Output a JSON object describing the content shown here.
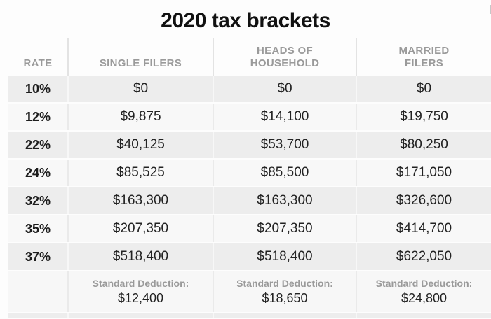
{
  "title": "2020 tax brackets",
  "colors": {
    "row_dark": "#ededed",
    "row_light": "#f8f8f8",
    "header_text": "#9a9a9a",
    "value_text": "#222222",
    "title_text": "#111111",
    "background": "#fdfdfd"
  },
  "table": {
    "header": {
      "rate": "RATE",
      "single": "SINGLE FILERS",
      "heads": "HEADS OF HOUSEHOLD",
      "married": "MARRIED FILERS"
    },
    "rows": [
      {
        "rate": "10%",
        "single": "$0",
        "heads": "$0",
        "married": "$0"
      },
      {
        "rate": "12%",
        "single": "$9,875",
        "heads": "$14,100",
        "married": "$19,750"
      },
      {
        "rate": "22%",
        "single": "$40,125",
        "heads": "$53,700",
        "married": "$80,250"
      },
      {
        "rate": "24%",
        "single": "$85,525",
        "heads": "$85,500",
        "married": "$171,050"
      },
      {
        "rate": "32%",
        "single": "$163,300",
        "heads": "$163,300",
        "married": "$326,600"
      },
      {
        "rate": "35%",
        "single": "$207,350",
        "heads": "$207,350",
        "married": "$414,700"
      },
      {
        "rate": "37%",
        "single": "$518,400",
        "heads": "$518,400",
        "married": "$622,050"
      }
    ],
    "standard_deduction": {
      "label": "Standard Deduction:",
      "single": "$12,400",
      "heads": "$18,650",
      "married": "$24,800"
    }
  },
  "chart_data": {
    "type": "table",
    "title": "2020 tax brackets",
    "columns": [
      "RATE",
      "SINGLE FILERS",
      "HEADS OF HOUSEHOLD",
      "MARRIED FILERS"
    ],
    "rows": [
      [
        "10%",
        "$0",
        "$0",
        "$0"
      ],
      [
        "12%",
        "$9,875",
        "$14,100",
        "$19,750"
      ],
      [
        "22%",
        "$40,125",
        "$53,700",
        "$80,250"
      ],
      [
        "24%",
        "$85,525",
        "$85,500",
        "$171,050"
      ],
      [
        "32%",
        "$163,300",
        "$163,300",
        "$326,600"
      ],
      [
        "35%",
        "$207,350",
        "$207,350",
        "$414,700"
      ],
      [
        "37%",
        "$518,400",
        "$518,400",
        "$622,050"
      ],
      [
        "",
        "Standard Deduction: $12,400",
        "Standard Deduction: $18,650",
        "Standard Deduction: $24,800"
      ]
    ]
  }
}
